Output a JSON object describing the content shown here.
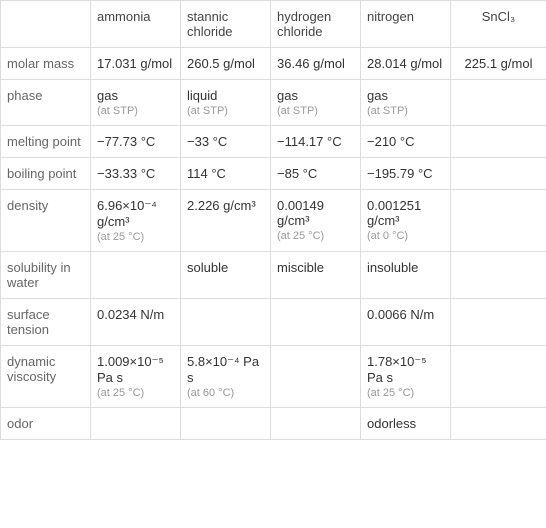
{
  "table": {
    "columns": [
      "",
      "ammonia",
      "stannic chloride",
      "hydrogen chloride",
      "nitrogen",
      "SnCl₃"
    ],
    "column_align": [
      "left",
      "left",
      "left",
      "left",
      "left",
      "center"
    ],
    "rows": [
      {
        "label": "molar mass",
        "cells": [
          {
            "main": "17.031 g/mol"
          },
          {
            "main": "260.5 g/mol"
          },
          {
            "main": "36.46 g/mol"
          },
          {
            "main": "28.014 g/mol"
          },
          {
            "main": "225.1 g/mol"
          }
        ]
      },
      {
        "label": "phase",
        "cells": [
          {
            "main": "gas",
            "note": "(at STP)"
          },
          {
            "main": "liquid",
            "note": "(at STP)"
          },
          {
            "main": "gas",
            "note": "(at STP)"
          },
          {
            "main": "gas",
            "note": "(at STP)"
          },
          {
            "main": ""
          }
        ]
      },
      {
        "label": "melting point",
        "cells": [
          {
            "main": "−77.73 °C"
          },
          {
            "main": "−33 °C"
          },
          {
            "main": "−114.17 °C"
          },
          {
            "main": "−210 °C"
          },
          {
            "main": ""
          }
        ]
      },
      {
        "label": "boiling point",
        "cells": [
          {
            "main": "−33.33 °C"
          },
          {
            "main": "114 °C"
          },
          {
            "main": "−85 °C"
          },
          {
            "main": "−195.79 °C"
          },
          {
            "main": ""
          }
        ]
      },
      {
        "label": "density",
        "cells": [
          {
            "main": "6.96×10⁻⁴ g/cm³",
            "note": "(at 25 °C)"
          },
          {
            "main": "2.226 g/cm³"
          },
          {
            "main": "0.00149 g/cm³",
            "note": "(at 25 °C)"
          },
          {
            "main": "0.001251 g/cm³",
            "note": "(at 0 °C)"
          },
          {
            "main": ""
          }
        ]
      },
      {
        "label": "solubility in water",
        "cells": [
          {
            "main": ""
          },
          {
            "main": "soluble"
          },
          {
            "main": "miscible"
          },
          {
            "main": "insoluble"
          },
          {
            "main": ""
          }
        ]
      },
      {
        "label": "surface tension",
        "cells": [
          {
            "main": "0.0234 N/m"
          },
          {
            "main": ""
          },
          {
            "main": ""
          },
          {
            "main": "0.0066 N/m"
          },
          {
            "main": ""
          }
        ]
      },
      {
        "label": "dynamic viscosity",
        "cells": [
          {
            "main": "1.009×10⁻⁵ Pa s",
            "note": "(at 25 °C)"
          },
          {
            "main": "5.8×10⁻⁴ Pa s",
            "note": "(at 60 °C)"
          },
          {
            "main": ""
          },
          {
            "main": "1.78×10⁻⁵ Pa s",
            "note": "(at 25 °C)"
          },
          {
            "main": ""
          }
        ]
      },
      {
        "label": "odor",
        "cells": [
          {
            "main": ""
          },
          {
            "main": ""
          },
          {
            "main": ""
          },
          {
            "main": "odorless"
          },
          {
            "main": ""
          }
        ]
      }
    ],
    "border_color": "#dddddd",
    "header_text_color": "#666666",
    "cell_text_color": "#333333",
    "note_text_color": "#999999",
    "background_color": "#ffffff",
    "font_size_main": 13,
    "font_size_note": 11
  }
}
